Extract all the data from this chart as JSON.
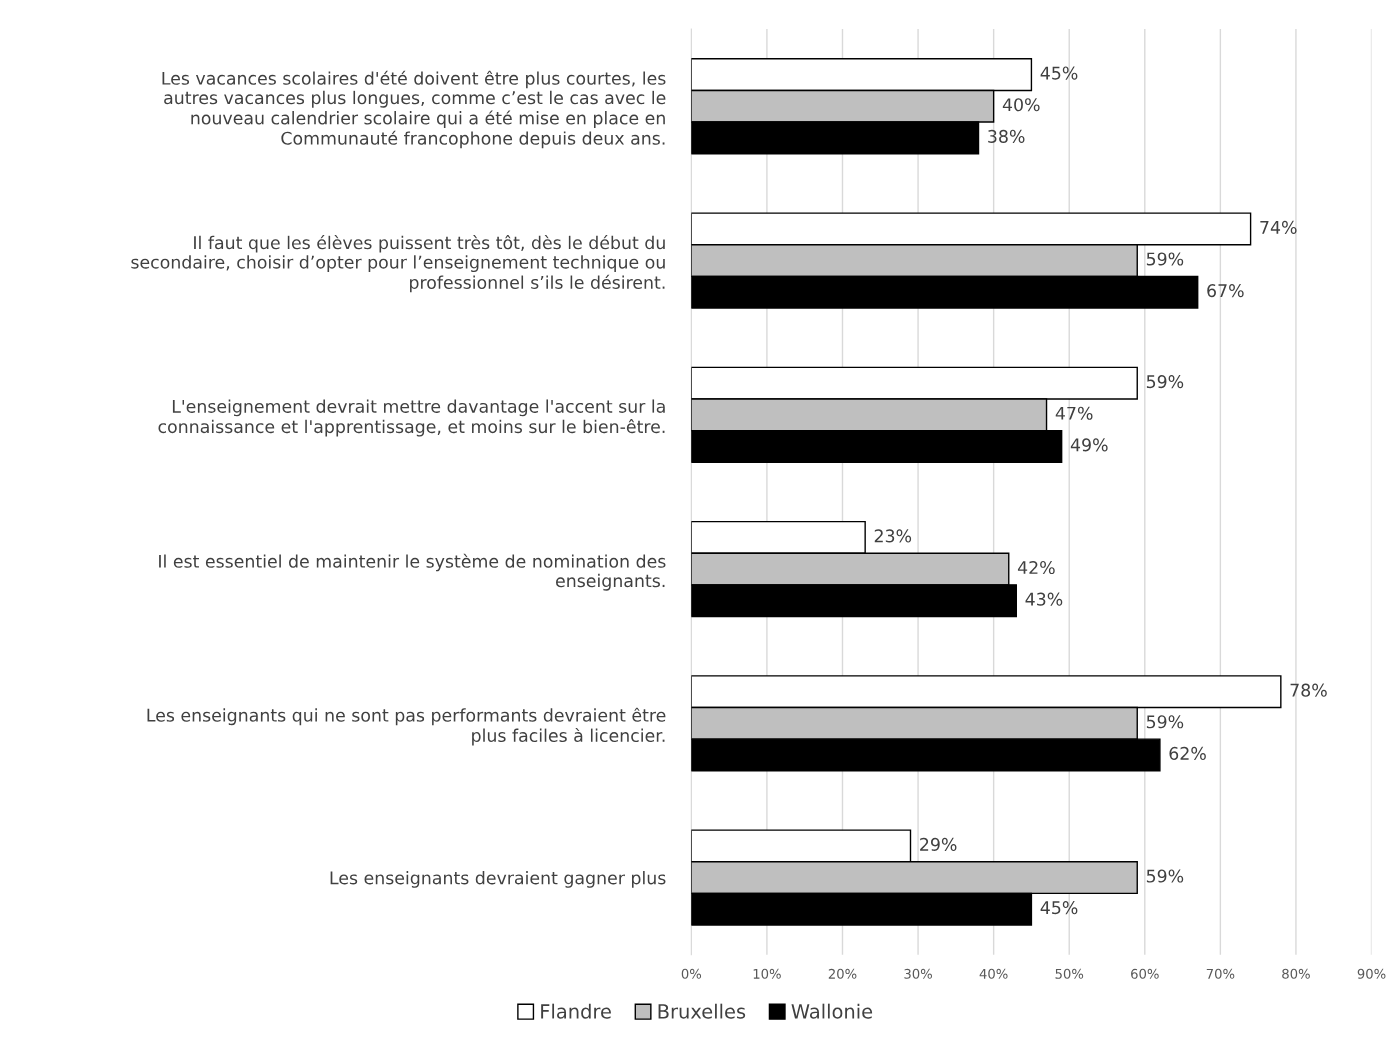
{
  "chart_data": {
    "type": "bar",
    "orientation": "horizontal",
    "categories": [
      "Les vacances scolaires d'été doivent être plus courtes, les\nautres vacances plus longues, comme c’est le cas avec le\nnouveau calendrier scolaire qui a été mise en place en\nCommunauté francophone depuis deux ans.",
      "Il faut que les élèves puissent très tôt, dès le début du\nsecondaire, choisir d’opter pour l’enseignement technique ou\nprofessionnel s’ils le désirent.",
      "L'enseignement devrait mettre davantage l'accent sur la\nconnaissance et l'apprentissage, et moins sur le bien-être.",
      "Il est essentiel de maintenir le système de nomination des\nenseignants.",
      "Les enseignants qui ne sont pas performants devraient être\nplus faciles à licencier.",
      "Les enseignants devraient gagner plus"
    ],
    "series": [
      {
        "name": "Flandre",
        "color": "#ffffff",
        "values": [
          45,
          74,
          59,
          23,
          78,
          29
        ],
        "value_labels": [
          "45%",
          "74%",
          "59%",
          "23%",
          "78%",
          "29%"
        ]
      },
      {
        "name": "Bruxelles",
        "color": "#bfbfbf",
        "values": [
          40,
          59,
          47,
          42,
          59,
          59
        ],
        "value_labels": [
          "40%",
          "59%",
          "47%",
          "42%",
          "59%",
          "59%"
        ]
      },
      {
        "name": "Wallonie",
        "color": "#000000",
        "values": [
          38,
          67,
          49,
          43,
          62,
          45
        ],
        "value_labels": [
          "38%",
          "67%",
          "49%",
          "43%",
          "62%",
          "45%"
        ]
      }
    ],
    "xlim": [
      0,
      90
    ],
    "xticks": [
      {
        "value": 0,
        "label": "0%"
      },
      {
        "value": 10,
        "label": "10%"
      },
      {
        "value": 20,
        "label": "20%"
      },
      {
        "value": 30,
        "label": "30%"
      },
      {
        "value": 40,
        "label": "40%"
      },
      {
        "value": 50,
        "label": "50%"
      },
      {
        "value": 60,
        "label": "60%"
      },
      {
        "value": 70,
        "label": "70%"
      },
      {
        "value": 80,
        "label": "80%"
      },
      {
        "value": 90,
        "label": "90%"
      }
    ],
    "grid": "x",
    "legend": "bottom"
  }
}
